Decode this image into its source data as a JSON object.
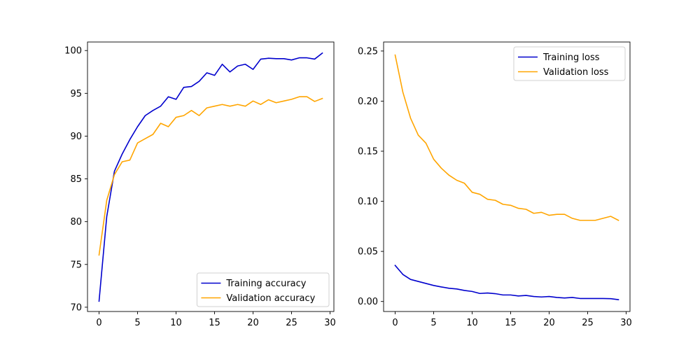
{
  "chart_data": [
    {
      "type": "line",
      "x": [
        0,
        1,
        2,
        3,
        4,
        5,
        6,
        7,
        8,
        9,
        10,
        11,
        12,
        13,
        14,
        15,
        16,
        17,
        18,
        19,
        20,
        21,
        22,
        23,
        24,
        25,
        26,
        27,
        28,
        29
      ],
      "xlim": [
        -1.5,
        30.5
      ],
      "ylim": [
        69.5,
        101.0
      ],
      "xticks": [
        0,
        5,
        10,
        15,
        20,
        25,
        30
      ],
      "yticks": [
        70,
        75,
        80,
        85,
        90,
        95,
        100
      ],
      "title": "",
      "xlabel": "",
      "ylabel": "",
      "grid": false,
      "legend_position": "bottom-right",
      "series": [
        {
          "name": "Training accuracy",
          "color": "#0000cd",
          "values": [
            70.7,
            80.6,
            85.9,
            87.9,
            89.6,
            91.1,
            92.4,
            93.0,
            93.5,
            94.6,
            94.3,
            95.7,
            95.8,
            96.4,
            97.4,
            97.1,
            98.4,
            97.5,
            98.2,
            98.4,
            97.8,
            99.0,
            99.1,
            99.05,
            99.05,
            98.9,
            99.15,
            99.15,
            99.0,
            99.7
          ]
        },
        {
          "name": "Validation accuracy",
          "color": "#ffa500",
          "values": [
            76.1,
            82.5,
            85.5,
            87.0,
            87.2,
            89.2,
            89.7,
            90.2,
            91.5,
            91.1,
            92.2,
            92.4,
            93.0,
            92.4,
            93.3,
            93.5,
            93.7,
            93.5,
            93.7,
            93.5,
            94.1,
            93.7,
            94.25,
            93.9,
            94.1,
            94.3,
            94.6,
            94.6,
            94.05,
            94.4
          ]
        }
      ]
    },
    {
      "type": "line",
      "x": [
        0,
        1,
        2,
        3,
        4,
        5,
        6,
        7,
        8,
        9,
        10,
        11,
        12,
        13,
        14,
        15,
        16,
        17,
        18,
        19,
        20,
        21,
        22,
        23,
        24,
        25,
        26,
        27,
        28,
        29
      ],
      "xlim": [
        -1.5,
        30.5
      ],
      "ylim": [
        -0.01,
        0.259
      ],
      "xticks": [
        0,
        5,
        10,
        15,
        20,
        25,
        30
      ],
      "yticks": [
        0.0,
        0.05,
        0.1,
        0.15,
        0.2,
        0.25
      ],
      "ytick_labels": [
        "0.00",
        "0.05",
        "0.10",
        "0.15",
        "0.20",
        "0.25"
      ],
      "title": "",
      "xlabel": "",
      "ylabel": "",
      "grid": false,
      "legend_position": "top-right",
      "series": [
        {
          "name": "Training loss",
          "color": "#0000cd",
          "values": [
            0.036,
            0.027,
            0.022,
            0.02,
            0.018,
            0.016,
            0.0145,
            0.0132,
            0.0125,
            0.011,
            0.01,
            0.008,
            0.0085,
            0.0078,
            0.0065,
            0.0065,
            0.0055,
            0.006,
            0.005,
            0.0045,
            0.005,
            0.004,
            0.0035,
            0.004,
            0.003,
            0.003,
            0.003,
            0.003,
            0.0028,
            0.0018
          ]
        },
        {
          "name": "Validation loss",
          "color": "#ffa500",
          "values": [
            0.246,
            0.209,
            0.183,
            0.166,
            0.158,
            0.142,
            0.133,
            0.126,
            0.121,
            0.118,
            0.109,
            0.107,
            0.102,
            0.101,
            0.097,
            0.096,
            0.093,
            0.092,
            0.088,
            0.089,
            0.086,
            0.087,
            0.087,
            0.083,
            0.081,
            0.081,
            0.081,
            0.083,
            0.085,
            0.081
          ]
        }
      ]
    }
  ]
}
